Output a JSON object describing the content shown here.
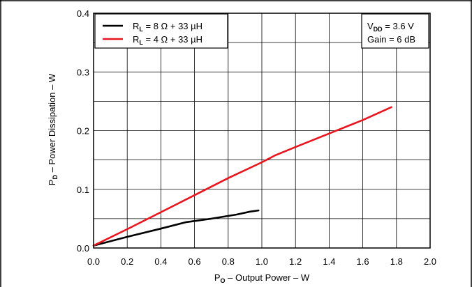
{
  "chart_data": {
    "type": "line",
    "x_axis": {
      "label_main": "P",
      "label_sub": "O",
      "label_rest": " – Output Power – W",
      "range": [
        0.0,
        2.0
      ],
      "ticks": [
        "0.0",
        "0.2",
        "0.4",
        "0.6",
        "0.8",
        "1.0",
        "1.2",
        "1.4",
        "1.6",
        "1.8",
        "2.0"
      ]
    },
    "y_axis": {
      "label_main": "P",
      "label_sub": "D",
      "label_rest": " – Power Dissipation – W",
      "range": [
        0.0,
        0.4
      ],
      "ticks": [
        "0.0",
        "0.1",
        "0.2",
        "0.3",
        "0.4"
      ]
    },
    "grid": true,
    "legend_position": "top-left",
    "series": [
      {
        "name_main": "R",
        "name_sub": "L",
        "name_rest": " = 8 Ω + 33 µH",
        "color": "#000000",
        "x": [
          0.0,
          0.2,
          0.4,
          0.55,
          0.7,
          0.85,
          0.93,
          0.98
        ],
        "y": [
          0.004,
          0.019,
          0.033,
          0.044,
          0.05,
          0.057,
          0.062,
          0.064
        ]
      },
      {
        "name_main": "R",
        "name_sub": "L",
        "name_rest": " = 4 Ω + 33 µH",
        "color": "#e8141e",
        "x": [
          0.0,
          0.2,
          0.4,
          0.6,
          0.8,
          1.0,
          1.08,
          1.2,
          1.4,
          1.6,
          1.77
        ],
        "y": [
          0.004,
          0.032,
          0.061,
          0.09,
          0.119,
          0.146,
          0.158,
          0.172,
          0.195,
          0.218,
          0.24
        ]
      }
    ],
    "annotation": {
      "line1_main": "V",
      "line1_sub": "DD",
      "line1_rest": " = 3.6 V",
      "line2": "Gain = 6 dB"
    }
  }
}
